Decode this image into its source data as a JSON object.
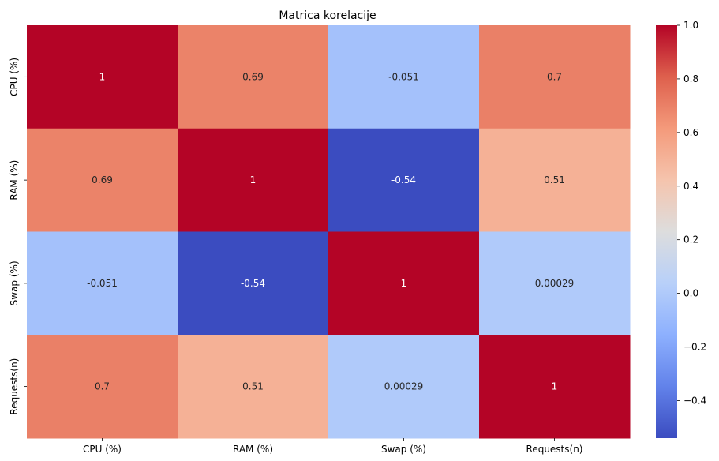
{
  "chart_data": {
    "type": "heatmap",
    "title": "Matrica korelacije",
    "x_labels": [
      "CPU (%)",
      "RAM (%)",
      "Swap (%)",
      "Requests(n)"
    ],
    "y_labels": [
      "CPU (%)",
      "RAM (%)",
      "Swap (%)",
      "Requests(n)"
    ],
    "values": [
      [
        1,
        0.69,
        -0.051,
        0.7
      ],
      [
        0.69,
        1,
        -0.54,
        0.51
      ],
      [
        -0.051,
        -0.54,
        1,
        0.00029
      ],
      [
        0.7,
        0.51,
        0.00029,
        1
      ]
    ],
    "annotations": [
      [
        "1",
        "0.69",
        "-0.051",
        "0.7"
      ],
      [
        "0.69",
        "1",
        "-0.54",
        "0.51"
      ],
      [
        "-0.051",
        "-0.54",
        "1",
        "0.00029"
      ],
      [
        "0.7",
        "0.51",
        "0.00029",
        "1"
      ]
    ],
    "colormap": "coolwarm",
    "vmin": -0.54,
    "vmax": 1.0,
    "colorbar_ticks": [
      1.0,
      0.8,
      0.6,
      0.4,
      0.2,
      0.0,
      -0.2,
      -0.4
    ],
    "colorbar_tick_labels": [
      "1.0",
      "0.8",
      "0.6",
      "0.4",
      "0.2",
      "0.0",
      "−0.2",
      "−0.4"
    ]
  }
}
